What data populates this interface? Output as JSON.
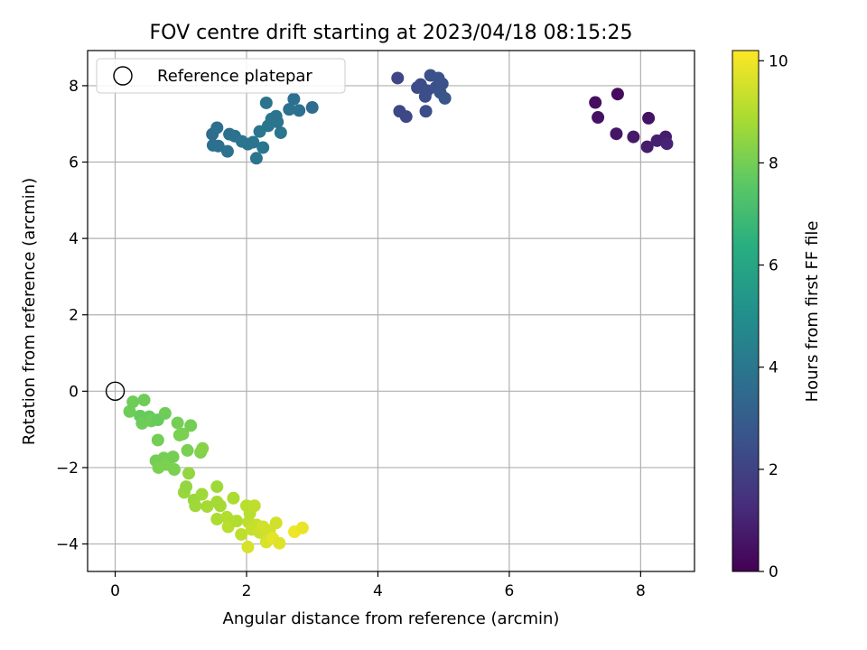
{
  "chart_data": {
    "type": "scatter",
    "title": "FOV centre drift starting at 2023/04/18 08:15:25",
    "xlabel": "Angular distance from reference (arcmin)",
    "ylabel": "Rotation from reference (arcmin)",
    "xlim": [
      -0.42,
      8.82
    ],
    "ylim": [
      -4.72,
      8.92
    ],
    "xticks": [
      0,
      2,
      4,
      6,
      8
    ],
    "xtick_labels": [
      "0",
      "2",
      "4",
      "6",
      "8"
    ],
    "yticks": [
      -4,
      -2,
      0,
      2,
      4,
      6,
      8
    ],
    "ytick_labels": [
      "−4",
      "−2",
      "0",
      "2",
      "4",
      "6",
      "8"
    ],
    "grid": true,
    "legend": {
      "placement": "top-left",
      "entries": [
        "Reference platepar"
      ]
    },
    "reference_point": {
      "label": "Reference platepar",
      "x": 0.0,
      "y": 0.0
    },
    "colorbar": {
      "label": "Hours from first FF file",
      "colormap": "viridis",
      "range": [
        0,
        10.2
      ],
      "ticks": [
        0,
        2,
        4,
        6,
        8,
        10
      ],
      "tick_labels": [
        "0",
        "2",
        "4",
        "6",
        "8",
        "10"
      ]
    },
    "series": [
      {
        "points": [
          [
            7.31,
            7.56,
            0.4
          ],
          [
            7.65,
            7.78,
            0.3
          ],
          [
            7.35,
            7.17,
            0.5
          ],
          [
            7.63,
            6.74,
            0.6
          ],
          [
            7.89,
            6.66,
            0.7
          ],
          [
            8.12,
            7.15,
            0.5
          ],
          [
            8.1,
            6.4,
            0.8
          ],
          [
            8.25,
            6.56,
            0.9
          ],
          [
            8.38,
            6.66,
            0.8
          ],
          [
            8.4,
            6.48,
            1.0
          ],
          [
            4.3,
            8.2,
            2.1
          ],
          [
            4.33,
            7.33,
            2.2
          ],
          [
            4.43,
            7.19,
            2.2
          ],
          [
            4.6,
            7.95,
            2.3
          ],
          [
            4.65,
            8.03,
            2.3
          ],
          [
            4.72,
            7.72,
            2.4
          ],
          [
            4.75,
            7.87,
            2.4
          ],
          [
            4.73,
            7.33,
            2.4
          ],
          [
            4.8,
            8.27,
            2.5
          ],
          [
            4.88,
            7.95,
            2.5
          ],
          [
            4.92,
            8.2,
            2.5
          ],
          [
            4.95,
            7.82,
            2.6
          ],
          [
            4.98,
            8.05,
            2.6
          ],
          [
            5.02,
            7.67,
            2.7
          ],
          [
            1.48,
            6.73,
            3.6
          ],
          [
            1.49,
            6.44,
            3.7
          ],
          [
            1.55,
            6.9,
            3.7
          ],
          [
            1.57,
            6.42,
            3.7
          ],
          [
            1.71,
            6.28,
            3.8
          ],
          [
            1.74,
            6.73,
            3.8
          ],
          [
            1.82,
            6.68,
            3.8
          ],
          [
            1.93,
            6.54,
            3.9
          ],
          [
            2.02,
            6.47,
            3.9
          ],
          [
            2.1,
            6.52,
            3.9
          ],
          [
            2.15,
            6.1,
            3.9
          ],
          [
            2.2,
            6.8,
            4.0
          ],
          [
            2.25,
            6.38,
            4.0
          ],
          [
            2.3,
            7.55,
            3.9
          ],
          [
            2.33,
            6.95,
            4.0
          ],
          [
            2.38,
            7.13,
            4.0
          ],
          [
            2.45,
            7.2,
            3.9
          ],
          [
            2.52,
            6.77,
            4.0
          ],
          [
            2.47,
            7.05,
            3.9
          ],
          [
            2.65,
            7.38,
            3.8
          ],
          [
            2.72,
            7.65,
            3.7
          ],
          [
            2.8,
            7.35,
            3.8
          ],
          [
            3.0,
            7.43,
            3.6
          ],
          [
            0.22,
            -0.53,
            7.9
          ],
          [
            0.27,
            -0.28,
            7.9
          ],
          [
            0.38,
            -0.65,
            7.8
          ],
          [
            0.44,
            -0.23,
            7.9
          ],
          [
            0.41,
            -0.84,
            7.9
          ],
          [
            0.52,
            -0.67,
            7.8
          ],
          [
            0.55,
            -0.78,
            7.9
          ],
          [
            0.65,
            -0.75,
            7.8
          ],
          [
            0.76,
            -0.58,
            7.9
          ],
          [
            0.65,
            -1.28,
            8.0
          ],
          [
            0.62,
            -1.82,
            8.0
          ],
          [
            0.66,
            -2.0,
            8.1
          ],
          [
            0.74,
            -1.75,
            8.0
          ],
          [
            0.78,
            -1.92,
            8.1
          ],
          [
            0.88,
            -1.72,
            8.0
          ],
          [
            0.9,
            -2.05,
            8.1
          ],
          [
            0.95,
            -0.83,
            8.0
          ],
          [
            0.98,
            -1.15,
            8.1
          ],
          [
            1.03,
            -1.12,
            8.1
          ],
          [
            1.1,
            -1.55,
            8.1
          ],
          [
            1.15,
            -0.9,
            8.0
          ],
          [
            1.3,
            -1.6,
            8.2
          ],
          [
            1.33,
            -1.5,
            8.3
          ],
          [
            1.05,
            -2.65,
            8.6
          ],
          [
            1.08,
            -2.5,
            8.5
          ],
          [
            1.12,
            -2.15,
            8.5
          ],
          [
            1.2,
            -2.85,
            8.6
          ],
          [
            1.22,
            -3.0,
            8.7
          ],
          [
            1.32,
            -2.7,
            8.7
          ],
          [
            1.4,
            -3.02,
            8.8
          ],
          [
            1.55,
            -2.5,
            8.7
          ],
          [
            1.55,
            -2.9,
            8.8
          ],
          [
            1.55,
            -3.35,
            8.9
          ],
          [
            1.6,
            -3.0,
            8.8
          ],
          [
            1.7,
            -3.3,
            9.0
          ],
          [
            1.72,
            -3.55,
            9.1
          ],
          [
            1.8,
            -2.8,
            8.9
          ],
          [
            1.85,
            -3.4,
            9.0
          ],
          [
            1.92,
            -3.75,
            9.2
          ],
          [
            2.0,
            -3.0,
            9.1
          ],
          [
            2.03,
            -3.43,
            9.2
          ],
          [
            2.05,
            -3.2,
            9.1
          ],
          [
            2.08,
            -3.62,
            9.3
          ],
          [
            2.02,
            -4.08,
            9.6
          ],
          [
            2.12,
            -3.0,
            9.2
          ],
          [
            2.15,
            -3.5,
            9.3
          ],
          [
            2.2,
            -3.7,
            9.4
          ],
          [
            2.25,
            -3.55,
            9.5
          ],
          [
            2.3,
            -3.95,
            9.6
          ],
          [
            2.35,
            -3.65,
            9.5
          ],
          [
            2.4,
            -3.85,
            9.8
          ],
          [
            2.45,
            -3.45,
            9.5
          ],
          [
            2.5,
            -3.98,
            9.7
          ],
          [
            2.73,
            -3.68,
            10.0
          ],
          [
            2.85,
            -3.58,
            9.9
          ]
        ]
      }
    ]
  }
}
